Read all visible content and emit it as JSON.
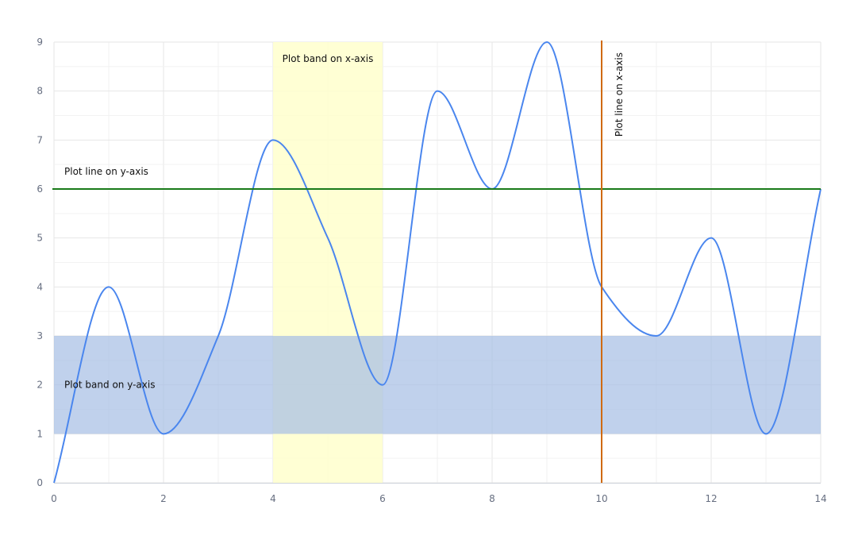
{
  "chart_data": {
    "type": "line",
    "title": "",
    "xlabel": "",
    "ylabel": "",
    "xlim": [
      0,
      14
    ],
    "ylim": [
      0,
      9
    ],
    "grid": true,
    "curve": "smooth",
    "series": [
      {
        "color": "#4a86ee",
        "x": [
          0,
          1,
          2,
          3,
          4,
          5,
          6,
          7,
          8,
          9,
          10,
          11,
          12,
          13,
          14
        ],
        "values": [
          0,
          4,
          1,
          3,
          7,
          5,
          2,
          8,
          6,
          9,
          4,
          3,
          5,
          1,
          6
        ]
      }
    ],
    "x_ticks": [
      "0",
      "2",
      "4",
      "6",
      "8",
      "10",
      "12",
      "14"
    ],
    "y_ticks": [
      "0",
      "1",
      "2",
      "3",
      "4",
      "5",
      "6",
      "7",
      "8",
      "9"
    ],
    "plot_bands": [
      {
        "axis": "x",
        "from": 4,
        "to": 6,
        "label": "Plot band on x-axis",
        "color": "#ffffcc"
      },
      {
        "axis": "y",
        "from": 1,
        "to": 3,
        "label": "Plot band on y-axis",
        "color": "#a8bfe4"
      }
    ],
    "plot_lines": [
      {
        "axis": "y",
        "value": 6,
        "label": "Plot line on y-axis",
        "color": "#1a7a1a"
      },
      {
        "axis": "x",
        "value": 10,
        "label": "Plot line on x-axis",
        "color": "#d06a0e"
      }
    ]
  }
}
